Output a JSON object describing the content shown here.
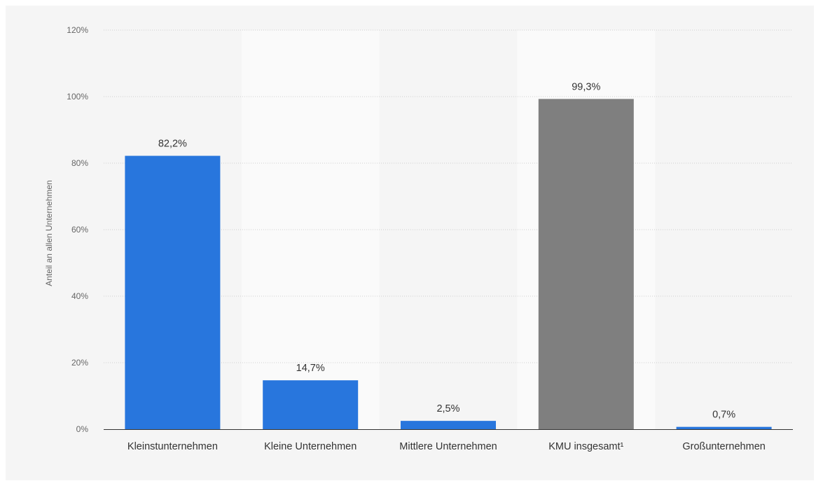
{
  "chart_data": {
    "type": "bar",
    "title": "",
    "xlabel": "",
    "ylabel": "Anteil an allen Unternehmen",
    "ylim": [
      0,
      120
    ],
    "y_ticks": [
      0,
      20,
      40,
      60,
      80,
      100,
      120
    ],
    "y_tick_labels": [
      "0%",
      "20%",
      "40%",
      "60%",
      "80%",
      "100%",
      "120%"
    ],
    "categories": [
      "Kleinstunternehmen",
      "Kleine Unternehmen",
      "Mittlere Unternehmen",
      "KMU insgesamt¹",
      "Großunternehmen"
    ],
    "values": [
      82.2,
      14.7,
      2.5,
      99.3,
      0.7
    ],
    "data_labels": [
      "82,2%",
      "14,7%",
      "2,5%",
      "99,3%",
      "0,7%"
    ],
    "bar_colors": [
      "#2876dd",
      "#2876dd",
      "#2876dd",
      "#7f7f7f",
      "#2876dd"
    ],
    "grid": true,
    "legend": "none"
  },
  "colors": {
    "panel_background": "#f5f5f5",
    "alt_band": "#fafafa",
    "gridline": "#d0d0d0",
    "axis_line": "#333333"
  }
}
